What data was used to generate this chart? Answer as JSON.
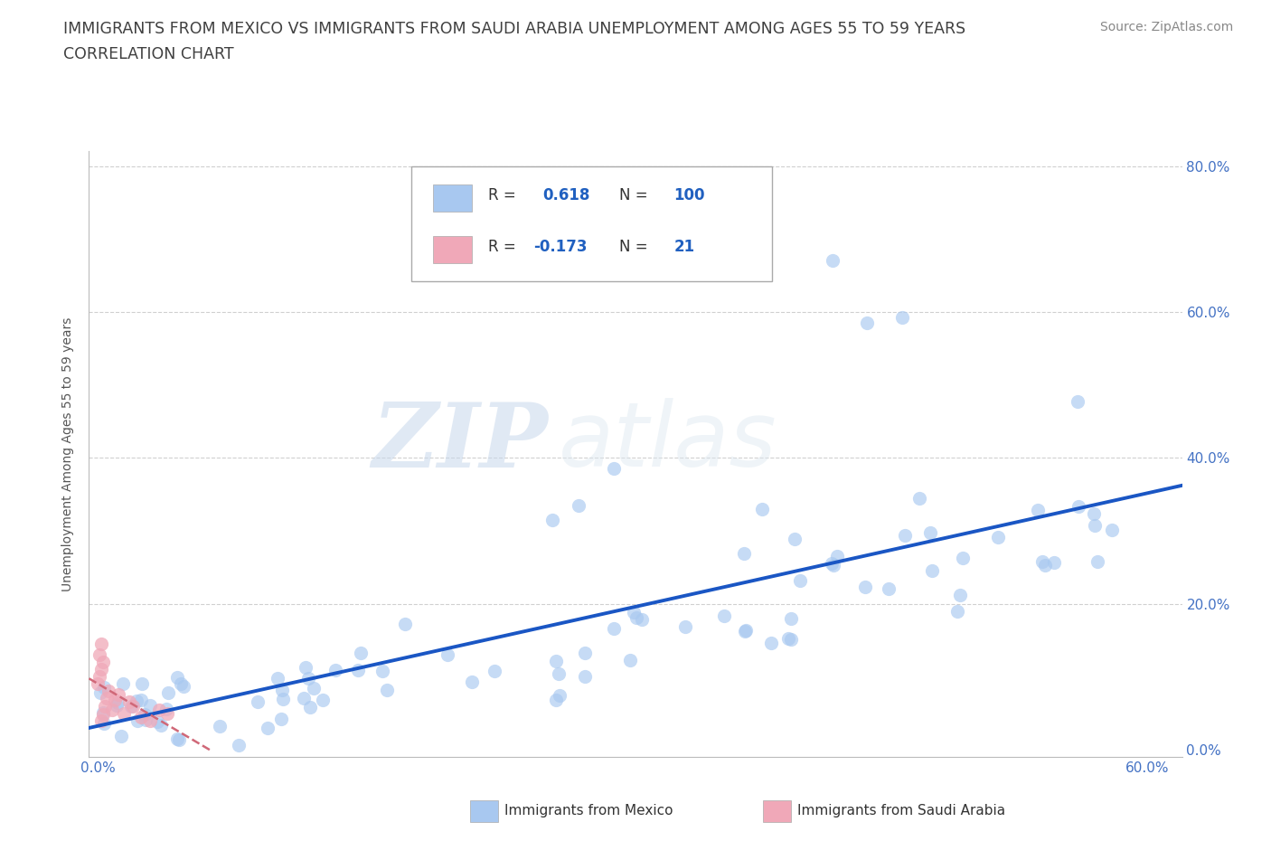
{
  "title_line1": "IMMIGRANTS FROM MEXICO VS IMMIGRANTS FROM SAUDI ARABIA UNEMPLOYMENT AMONG AGES 55 TO 59 YEARS",
  "title_line2": "CORRELATION CHART",
  "source": "Source: ZipAtlas.com",
  "ylabel": "Unemployment Among Ages 55 to 59 years",
  "xlim": [
    -0.005,
    0.62
  ],
  "ylim": [
    -0.01,
    0.82
  ],
  "xticks": [
    0.0,
    0.1,
    0.2,
    0.3,
    0.4,
    0.5,
    0.6
  ],
  "yticks": [
    0.0,
    0.2,
    0.4,
    0.6,
    0.8
  ],
  "xtick_labels": [
    "0.0%",
    "",
    "",
    "",
    "",
    "",
    "60.0%"
  ],
  "ytick_labels_right": [
    "0.0%",
    "20.0%",
    "40.0%",
    "60.0%",
    "80.0%"
  ],
  "mexico_R": 0.618,
  "mexico_N": 100,
  "saudi_R": -0.173,
  "saudi_N": 21,
  "mexico_color": "#a8c8f0",
  "mexico_line_color": "#1a56c4",
  "saudi_color": "#f0a8b8",
  "saudi_line_color": "#d06878",
  "watermark_zip": "ZIP",
  "watermark_atlas": "atlas",
  "background_color": "#ffffff",
  "grid_color": "#d0d0d0",
  "title_color": "#404040",
  "legend_color_text": "#2060c0",
  "bottom_legend_x": [
    "Immigrants from Mexico",
    "Immigrants from Saudi Arabia"
  ]
}
